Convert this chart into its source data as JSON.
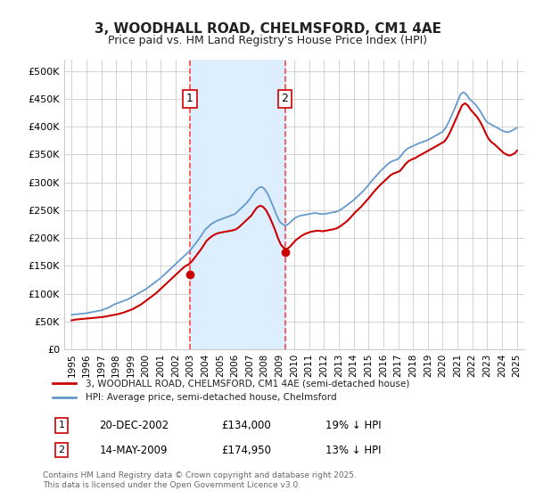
{
  "title": "3, WOODHALL ROAD, CHELMSFORD, CM1 4AE",
  "subtitle": "Price paid vs. HM Land Registry's House Price Index (HPI)",
  "legend_line1": "3, WOODHALL ROAD, CHELMSFORD, CM1 4AE (semi-detached house)",
  "legend_line2": "HPI: Average price, semi-detached house, Chelmsford",
  "footer": "Contains HM Land Registry data © Crown copyright and database right 2025.\nThis data is licensed under the Open Government Licence v3.0.",
  "annotation1_label": "1",
  "annotation1_date": "20-DEC-2002",
  "annotation1_price": "£134,000",
  "annotation1_hpi": "19% ↓ HPI",
  "annotation2_label": "2",
  "annotation2_date": "14-MAY-2009",
  "annotation2_price": "£174,950",
  "annotation2_hpi": "13% ↓ HPI",
  "sale1_x": 2002.97,
  "sale1_y": 134000,
  "sale2_x": 2009.37,
  "sale2_y": 174950,
  "vline1_x": 2002.97,
  "vline2_x": 2009.37,
  "shade_xmin": 2002.97,
  "shade_xmax": 2009.37,
  "ylim_min": 0,
  "ylim_max": 520000,
  "xlim_min": 1994.5,
  "xlim_max": 2025.5,
  "red_color": "#cc0000",
  "blue_color": "#6699cc",
  "background_color": "#ffffff",
  "grid_color": "#cccccc",
  "shade_color": "#ddeeff",
  "vline_color": "#ff4444",
  "yticks": [
    0,
    50000,
    100000,
    150000,
    200000,
    250000,
    300000,
    350000,
    400000,
    450000,
    500000
  ],
  "ytick_labels": [
    "£0",
    "£50K",
    "£100K",
    "£150K",
    "£200K",
    "£250K",
    "£300K",
    "£350K",
    "£400K",
    "£450K",
    "£500K"
  ],
  "xticks": [
    1995,
    1996,
    1997,
    1998,
    1999,
    2000,
    2001,
    2002,
    2003,
    2004,
    2005,
    2006,
    2007,
    2008,
    2009,
    2010,
    2011,
    2012,
    2013,
    2014,
    2015,
    2016,
    2017,
    2018,
    2019,
    2020,
    2021,
    2022,
    2023,
    2024,
    2025
  ],
  "hpi_x": [
    1995.0,
    1995.1,
    1995.2,
    1995.3,
    1995.4,
    1995.5,
    1995.6,
    1995.7,
    1995.8,
    1995.9,
    1996.0,
    1996.1,
    1996.2,
    1996.3,
    1996.4,
    1996.5,
    1996.6,
    1996.7,
    1996.8,
    1996.9,
    1997.0,
    1997.1,
    1997.2,
    1997.3,
    1997.4,
    1997.5,
    1997.6,
    1997.7,
    1997.8,
    1997.9,
    1998.0,
    1998.2,
    1998.4,
    1998.6,
    1998.8,
    1999.0,
    1999.2,
    1999.4,
    1999.6,
    1999.8,
    2000.0,
    2000.2,
    2000.4,
    2000.6,
    2000.8,
    2001.0,
    2001.2,
    2001.4,
    2001.6,
    2001.8,
    2002.0,
    2002.2,
    2002.4,
    2002.6,
    2002.8,
    2003.0,
    2003.2,
    2003.4,
    2003.6,
    2003.8,
    2004.0,
    2004.2,
    2004.4,
    2004.6,
    2004.8,
    2005.0,
    2005.2,
    2005.4,
    2005.6,
    2005.8,
    2006.0,
    2006.2,
    2006.4,
    2006.6,
    2006.8,
    2007.0,
    2007.2,
    2007.4,
    2007.6,
    2007.8,
    2008.0,
    2008.2,
    2008.4,
    2008.6,
    2008.8,
    2009.0,
    2009.2,
    2009.4,
    2009.6,
    2009.8,
    2010.0,
    2010.2,
    2010.4,
    2010.6,
    2010.8,
    2011.0,
    2011.2,
    2011.4,
    2011.6,
    2011.8,
    2012.0,
    2012.2,
    2012.4,
    2012.6,
    2012.8,
    2013.0,
    2013.2,
    2013.4,
    2013.6,
    2013.8,
    2014.0,
    2014.2,
    2014.4,
    2014.6,
    2014.8,
    2015.0,
    2015.2,
    2015.4,
    2015.6,
    2015.8,
    2016.0,
    2016.2,
    2016.4,
    2016.6,
    2016.8,
    2017.0,
    2017.2,
    2017.4,
    2017.6,
    2017.8,
    2018.0,
    2018.2,
    2018.4,
    2018.6,
    2018.8,
    2019.0,
    2019.2,
    2019.4,
    2019.6,
    2019.8,
    2020.0,
    2020.2,
    2020.4,
    2020.6,
    2020.8,
    2021.0,
    2021.2,
    2021.4,
    2021.6,
    2021.8,
    2022.0,
    2022.2,
    2022.4,
    2022.6,
    2022.8,
    2023.0,
    2023.2,
    2023.4,
    2023.6,
    2023.8,
    2024.0,
    2024.2,
    2024.4,
    2024.6,
    2024.8,
    2025.0
  ],
  "hpi_y": [
    62000,
    62500,
    63000,
    62800,
    63200,
    63500,
    63800,
    64000,
    64200,
    64500,
    65000,
    65500,
    66000,
    66500,
    67000,
    67500,
    68000,
    68500,
    69000,
    69500,
    70000,
    71000,
    72000,
    73000,
    74000,
    75000,
    76500,
    78000,
    79500,
    81000,
    82000,
    84000,
    86000,
    88000,
    90000,
    93000,
    96000,
    99000,
    102000,
    105000,
    108000,
    112000,
    116000,
    120000,
    124000,
    128000,
    133000,
    138000,
    143000,
    148000,
    153000,
    158000,
    163000,
    168000,
    173000,
    178000,
    185000,
    192000,
    199000,
    207000,
    215000,
    220000,
    225000,
    228000,
    231000,
    233000,
    235000,
    237000,
    239000,
    241000,
    243000,
    248000,
    253000,
    258000,
    263000,
    270000,
    278000,
    285000,
    290000,
    292000,
    288000,
    280000,
    268000,
    255000,
    242000,
    230000,
    225000,
    222000,
    225000,
    230000,
    235000,
    238000,
    240000,
    241000,
    242000,
    243000,
    244000,
    245000,
    244000,
    243000,
    243000,
    244000,
    245000,
    246000,
    247000,
    249000,
    252000,
    256000,
    260000,
    264000,
    268000,
    273000,
    278000,
    283000,
    289000,
    295000,
    302000,
    308000,
    314000,
    320000,
    325000,
    330000,
    335000,
    338000,
    340000,
    342000,
    348000,
    355000,
    360000,
    363000,
    365000,
    368000,
    370000,
    372000,
    374000,
    376000,
    379000,
    382000,
    385000,
    388000,
    391000,
    398000,
    408000,
    420000,
    432000,
    445000,
    458000,
    462000,
    458000,
    450000,
    445000,
    440000,
    433000,
    425000,
    415000,
    408000,
    405000,
    402000,
    399000,
    396000,
    393000,
    391000,
    390000,
    392000,
    395000,
    398000
  ],
  "price_x": [
    1995.0,
    1995.1,
    1995.2,
    1995.3,
    1995.5,
    1995.7,
    1995.9,
    1996.1,
    1996.3,
    1996.5,
    1996.7,
    1996.9,
    1997.1,
    1997.3,
    1997.5,
    1997.7,
    1997.9,
    1998.1,
    1998.3,
    1998.5,
    1998.7,
    1998.9,
    1999.1,
    1999.3,
    1999.5,
    1999.7,
    1999.9,
    2000.1,
    2000.3,
    2000.5,
    2000.7,
    2000.9,
    2001.1,
    2001.3,
    2001.5,
    2001.7,
    2001.9,
    2002.1,
    2002.3,
    2002.5,
    2002.7,
    2002.9,
    2003.1,
    2003.3,
    2003.5,
    2003.7,
    2003.9,
    2004.1,
    2004.3,
    2004.5,
    2004.7,
    2004.9,
    2005.1,
    2005.3,
    2005.5,
    2005.7,
    2005.9,
    2006.1,
    2006.3,
    2006.5,
    2006.7,
    2006.9,
    2007.1,
    2007.3,
    2007.5,
    2007.7,
    2007.9,
    2008.1,
    2008.3,
    2008.5,
    2008.7,
    2008.9,
    2009.1,
    2009.3,
    2009.5,
    2009.7,
    2009.9,
    2010.1,
    2010.3,
    2010.5,
    2010.7,
    2010.9,
    2011.1,
    2011.3,
    2011.5,
    2011.7,
    2011.9,
    2012.1,
    2012.3,
    2012.5,
    2012.7,
    2012.9,
    2013.1,
    2013.3,
    2013.5,
    2013.7,
    2013.9,
    2014.1,
    2014.3,
    2014.5,
    2014.7,
    2014.9,
    2015.1,
    2015.3,
    2015.5,
    2015.7,
    2015.9,
    2016.1,
    2016.3,
    2016.5,
    2016.7,
    2016.9,
    2017.1,
    2017.3,
    2017.5,
    2017.7,
    2017.9,
    2018.1,
    2018.3,
    2018.5,
    2018.7,
    2018.9,
    2019.1,
    2019.3,
    2019.5,
    2019.7,
    2019.9,
    2020.1,
    2020.3,
    2020.5,
    2020.7,
    2020.9,
    2021.1,
    2021.3,
    2021.5,
    2021.7,
    2021.9,
    2022.1,
    2022.3,
    2022.5,
    2022.7,
    2022.9,
    2023.1,
    2023.3,
    2023.5,
    2023.7,
    2023.9,
    2024.1,
    2024.3,
    2024.5,
    2024.7,
    2024.9,
    2025.0
  ],
  "price_y": [
    52000,
    52500,
    53000,
    53500,
    54000,
    54500,
    55000,
    55500,
    56000,
    56500,
    57000,
    57500,
    58000,
    59000,
    60000,
    61000,
    62000,
    63000,
    64500,
    66000,
    68000,
    70000,
    72000,
    75000,
    78000,
    81000,
    85000,
    89000,
    93000,
    97000,
    101000,
    106000,
    111000,
    116000,
    121000,
    126000,
    131000,
    136000,
    141000,
    146000,
    150000,
    153000,
    158000,
    165000,
    172000,
    179000,
    187000,
    195000,
    200000,
    204000,
    207000,
    209000,
    210000,
    211000,
    212000,
    213000,
    214000,
    216000,
    220000,
    225000,
    230000,
    235000,
    240000,
    248000,
    255000,
    258000,
    256000,
    250000,
    240000,
    228000,
    215000,
    200000,
    188000,
    182000,
    180000,
    184000,
    190000,
    196000,
    200000,
    204000,
    207000,
    209000,
    211000,
    212000,
    213000,
    213000,
    212000,
    213000,
    214000,
    215000,
    216000,
    218000,
    221000,
    225000,
    229000,
    234000,
    240000,
    246000,
    251000,
    256000,
    262000,
    268000,
    274000,
    281000,
    287000,
    293000,
    298000,
    303000,
    308000,
    313000,
    316000,
    318000,
    320000,
    326000,
    333000,
    338000,
    341000,
    343000,
    346000,
    349000,
    352000,
    355000,
    358000,
    361000,
    364000,
    367000,
    370000,
    373000,
    380000,
    390000,
    402000,
    414000,
    426000,
    438000,
    442000,
    438000,
    430000,
    424000,
    418000,
    410000,
    400000,
    388000,
    378000,
    372000,
    368000,
    363000,
    358000,
    353000,
    350000,
    348000,
    350000,
    353000,
    357000
  ]
}
